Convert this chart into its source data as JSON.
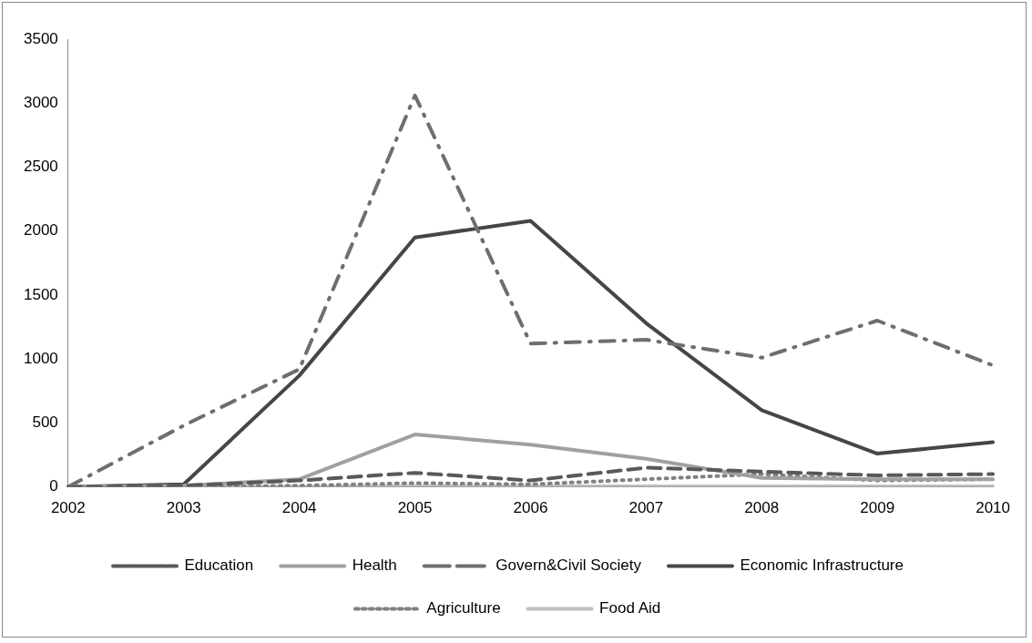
{
  "chart_data": {
    "type": "line",
    "categories": [
      "2002",
      "2003",
      "2004",
      "2005",
      "2006",
      "2007",
      "2008",
      "2009",
      "2010"
    ],
    "series": [
      {
        "name": "Education",
        "color": "#595959",
        "line_style": "dashed",
        "values": [
          0,
          10,
          50,
          110,
          50,
          150,
          120,
          90,
          100
        ]
      },
      {
        "name": "Health",
        "color": "#a0a0a0",
        "line_style": "solid",
        "values": [
          0,
          10,
          60,
          410,
          330,
          220,
          70,
          60,
          60
        ]
      },
      {
        "name": "Govern&Civil Society",
        "color": "#6e6e6e",
        "line_style": "dashdot",
        "values": [
          0,
          480,
          920,
          3060,
          1120,
          1150,
          1010,
          1300,
          950
        ]
      },
      {
        "name": "Economic Infrastructure",
        "color": "#464646",
        "line_style": "solid",
        "values": [
          0,
          20,
          870,
          1950,
          2080,
          1280,
          600,
          260,
          350
        ]
      },
      {
        "name": "Agriculture",
        "color": "#808080",
        "line_style": "dotted",
        "values": [
          0,
          0,
          10,
          30,
          20,
          60,
          100,
          50,
          60
        ]
      },
      {
        "name": "Food Aid",
        "color": "#bfbfbf",
        "line_style": "solid",
        "values": [
          0,
          0,
          0,
          5,
          5,
          5,
          5,
          5,
          5
        ]
      }
    ],
    "ylim": [
      0,
      3500
    ],
    "yticks": [
      0,
      500,
      1000,
      1500,
      2000,
      2500,
      3000,
      3500
    ],
    "grid": false,
    "legend": "bottom",
    "marker": "none"
  }
}
